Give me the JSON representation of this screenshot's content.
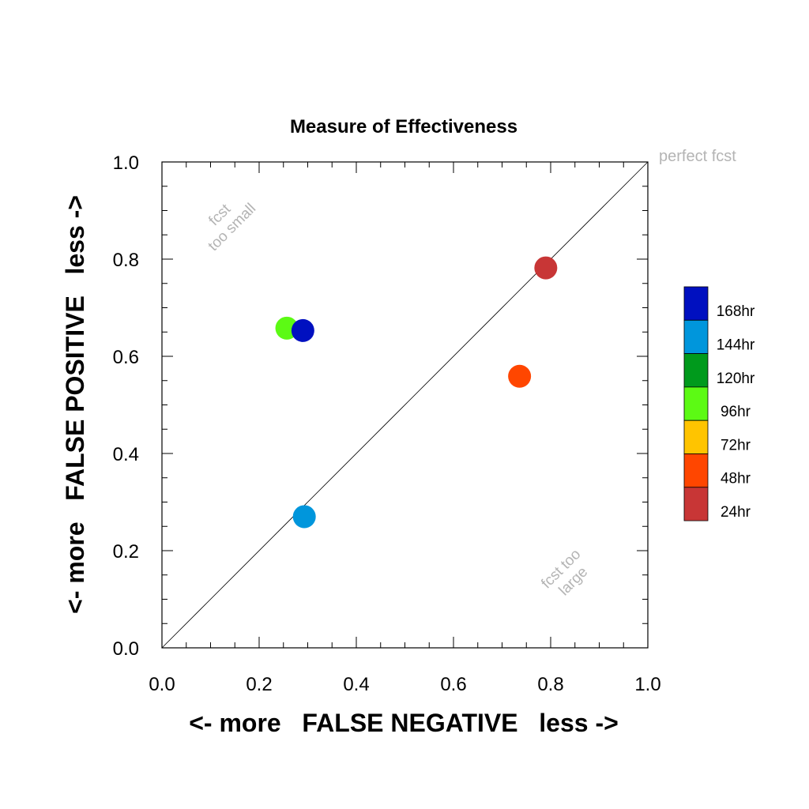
{
  "chart_data": {
    "type": "scatter",
    "title": "Measure of Effectiveness",
    "xlabel": "<- more   FALSE NEGATIVE   less ->",
    "ylabel": "<- more   FALSE POSITIVE   less ->",
    "xlim": [
      0.0,
      1.0
    ],
    "ylim": [
      0.0,
      1.0
    ],
    "x_ticks": [
      "0.0",
      "0.2",
      "0.4",
      "0.6",
      "0.8",
      "1.0"
    ],
    "y_ticks": [
      "0.0",
      "0.2",
      "0.4",
      "0.6",
      "0.8",
      "1.0"
    ],
    "grid": false,
    "diagonal_line": true,
    "annotations": {
      "perfect": "perfect fcst",
      "too_small_1": "fcst",
      "too_small_2": "too small",
      "too_large_1": "fcst too",
      "too_large_2": "large"
    },
    "legend": {
      "placement": "right",
      "entries": [
        {
          "label": "168hr",
          "color": "#0010c0"
        },
        {
          "label": "144hr",
          "color": "#0096dc"
        },
        {
          "label": "120hr",
          "color": "#009a1c"
        },
        {
          "label": "96hr",
          "color": "#5cfa14"
        },
        {
          "label": "72hr",
          "color": "#ffc400"
        },
        {
          "label": "48hr",
          "color": "#ff4600"
        },
        {
          "label": "24hr",
          "color": "#c83636"
        }
      ]
    },
    "points": [
      {
        "x": 0.79,
        "y": 0.782,
        "color": "#c83636"
      },
      {
        "x": 0.736,
        "y": 0.559,
        "color": "#ff4600"
      },
      {
        "x": 0.257,
        "y": 0.658,
        "color": "#5cfa14"
      },
      {
        "x": 0.293,
        "y": 0.27,
        "color": "#0096dc"
      },
      {
        "x": 0.29,
        "y": 0.653,
        "color": "#0010c0"
      }
    ]
  }
}
